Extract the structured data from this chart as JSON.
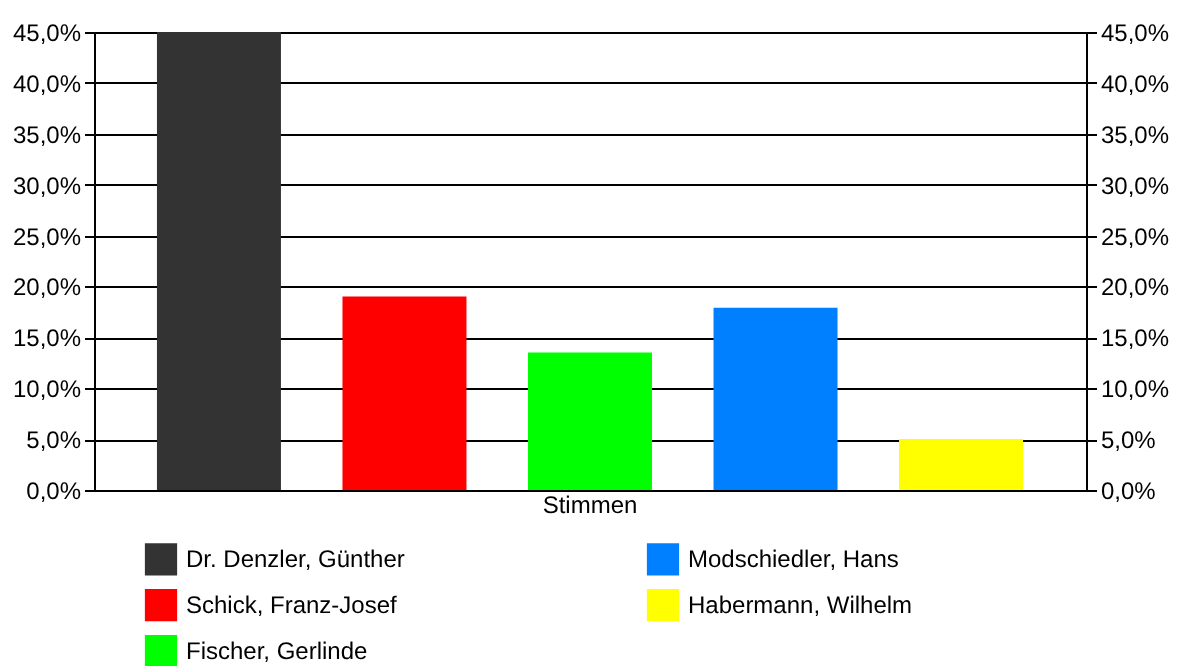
{
  "chart_data": {
    "type": "bar",
    "categories": [
      "Stimmen"
    ],
    "series": [
      {
        "name": "Dr. Denzler, Günther",
        "color": "#333333",
        "values": [
          45.0
        ]
      },
      {
        "name": "Schick, Franz-Josef",
        "color": "#ff0000",
        "values": [
          19.0
        ]
      },
      {
        "name": "Fischer, Gerlinde",
        "color": "#00ff00",
        "values": [
          13.5
        ]
      },
      {
        "name": "Modschiedler, Hans",
        "color": "#0080ff",
        "values": [
          17.9
        ]
      },
      {
        "name": "Habermann, Wilhelm",
        "color": "#ffff00",
        "values": [
          5.0
        ]
      }
    ],
    "ylim": [
      0,
      45
    ],
    "yticks": [
      {
        "value": 0,
        "label": "0,0%"
      },
      {
        "value": 5,
        "label": "5,0%"
      },
      {
        "value": 10,
        "label": "10,0%"
      },
      {
        "value": 15,
        "label": "15,0%"
      },
      {
        "value": 20,
        "label": "20,0%"
      },
      {
        "value": 25,
        "label": "25,0%"
      },
      {
        "value": 30,
        "label": "30,0%"
      },
      {
        "value": 35,
        "label": "35,0%"
      },
      {
        "value": 40,
        "label": "40,0%"
      },
      {
        "value": 45,
        "label": "45,0%"
      }
    ],
    "grid": "y",
    "legend": "bottom"
  }
}
